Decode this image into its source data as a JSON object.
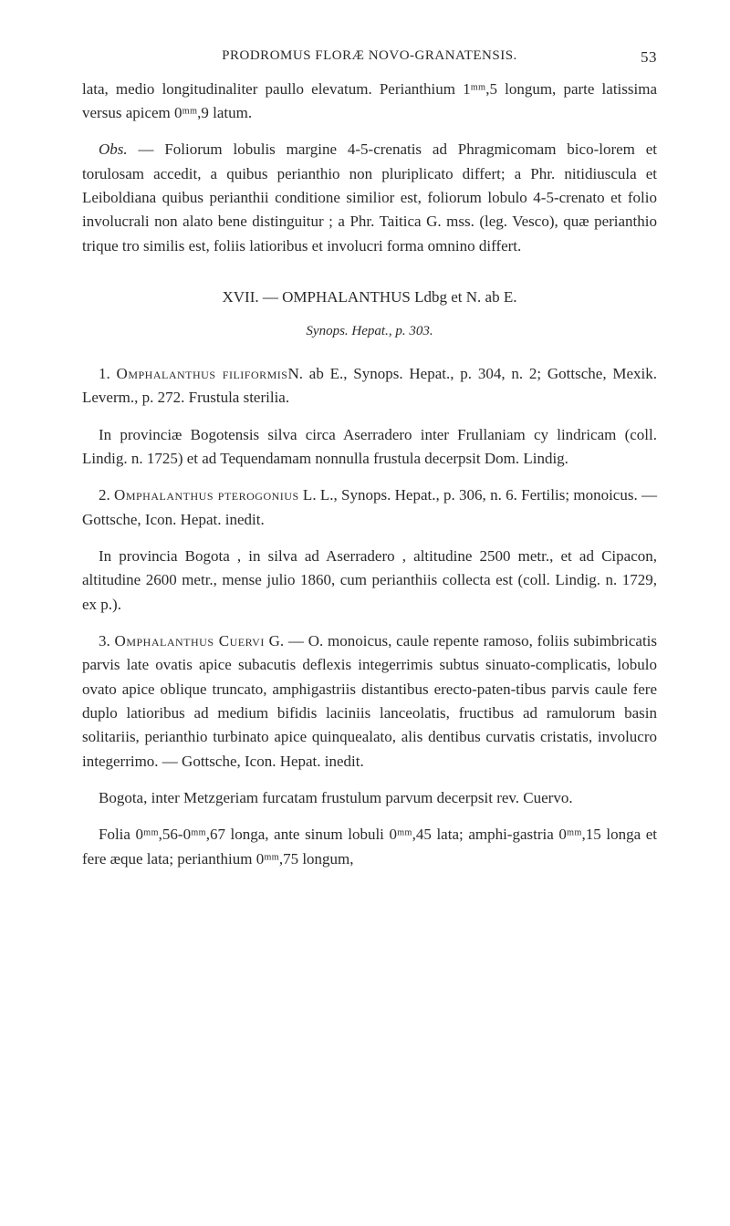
{
  "header": {
    "title": "PRODROMUS FLORÆ NOVO-GRANATENSIS.",
    "page_number": "53"
  },
  "p1": "lata, medio longitudinaliter paullo elevatum. Perianthium 1ᵐᵐ,5 longum, parte latissima versus apicem 0ᵐᵐ,9 latum.",
  "p2_label": "Obs.",
  "p2": " — Foliorum lobulis margine 4-5-crenatis ad Phragmicomam bico-lorem et torulosam accedit, a quibus perianthio non pluriplicato differt; a Phr. nitidiuscula et Leiboldiana quibus perianthii conditione similior est, foliorum lobulo 4-5-crenato et folio involucrali non alato bene distinguitur ; a Phr. Taitica G. mss. (leg. Vesco), quæ perianthio trique tro similis est, foliis latioribus et involucri forma omnino differt.",
  "section": {
    "number": "XVII.",
    "title": " — OMPHALANTHUS Ldbg et N. ab E."
  },
  "subheading": "Synops. Hepat., p. 303.",
  "entry1": {
    "num": "1. ",
    "name": "Omphalanthus filiformis",
    "rest": "N. ab E., Synops. Hepat., p. 304, n. 2; Gottsche, Mexik. Leverm., p. 272. Frustula sterilia."
  },
  "entry1_desc": "In provinciæ Bogotensis silva circa Aserradero inter Frullaniam cy lindricam (coll. Lindig. n. 1725) et ad Tequendamam nonnulla frustula decerpsit Dom. Lindig.",
  "entry2": {
    "num": "2. ",
    "name": "Omphalanthus pterogonius",
    "rest": " L. L., Synops. Hepat., p. 306, n. 6. Fertilis; monoicus. — Gottsche, Icon. Hepat. inedit."
  },
  "entry2_desc": "In provincia Bogota , in silva ad Aserradero , altitudine 2500 metr., et ad Cipacon, altitudine 2600 metr., mense julio 1860, cum perianthiis collecta est (coll. Lindig. n. 1729, ex p.).",
  "entry3": {
    "num": "3. ",
    "name": "Omphalanthus Cuervi",
    "rest": " G. — O. monoicus, caule repente ramoso, foliis subimbricatis parvis late ovatis apice subacutis deflexis integerrimis subtus sinuato-complicatis, lobulo ovato apice oblique truncato, amphigastriis distantibus erecto-paten-tibus parvis caule fere duplo latioribus ad medium bifidis laciniis lanceolatis, fructibus ad ramulorum basin solitariis, perianthio turbinato apice quinquealato, alis dentibus curvatis cristatis, involucro integerrimo. — Gottsche, Icon. Hepat. inedit."
  },
  "entry3_desc1": "Bogota, inter Metzgeriam furcatam frustulum parvum decerpsit rev. Cuervo.",
  "entry3_desc2": "Folia 0ᵐᵐ,56-0ᵐᵐ,67 longa, ante sinum lobuli 0ᵐᵐ,45 lata; amphi-gastria 0ᵐᵐ,15 longa et fere æque lata; perianthium 0ᵐᵐ,75 longum,"
}
